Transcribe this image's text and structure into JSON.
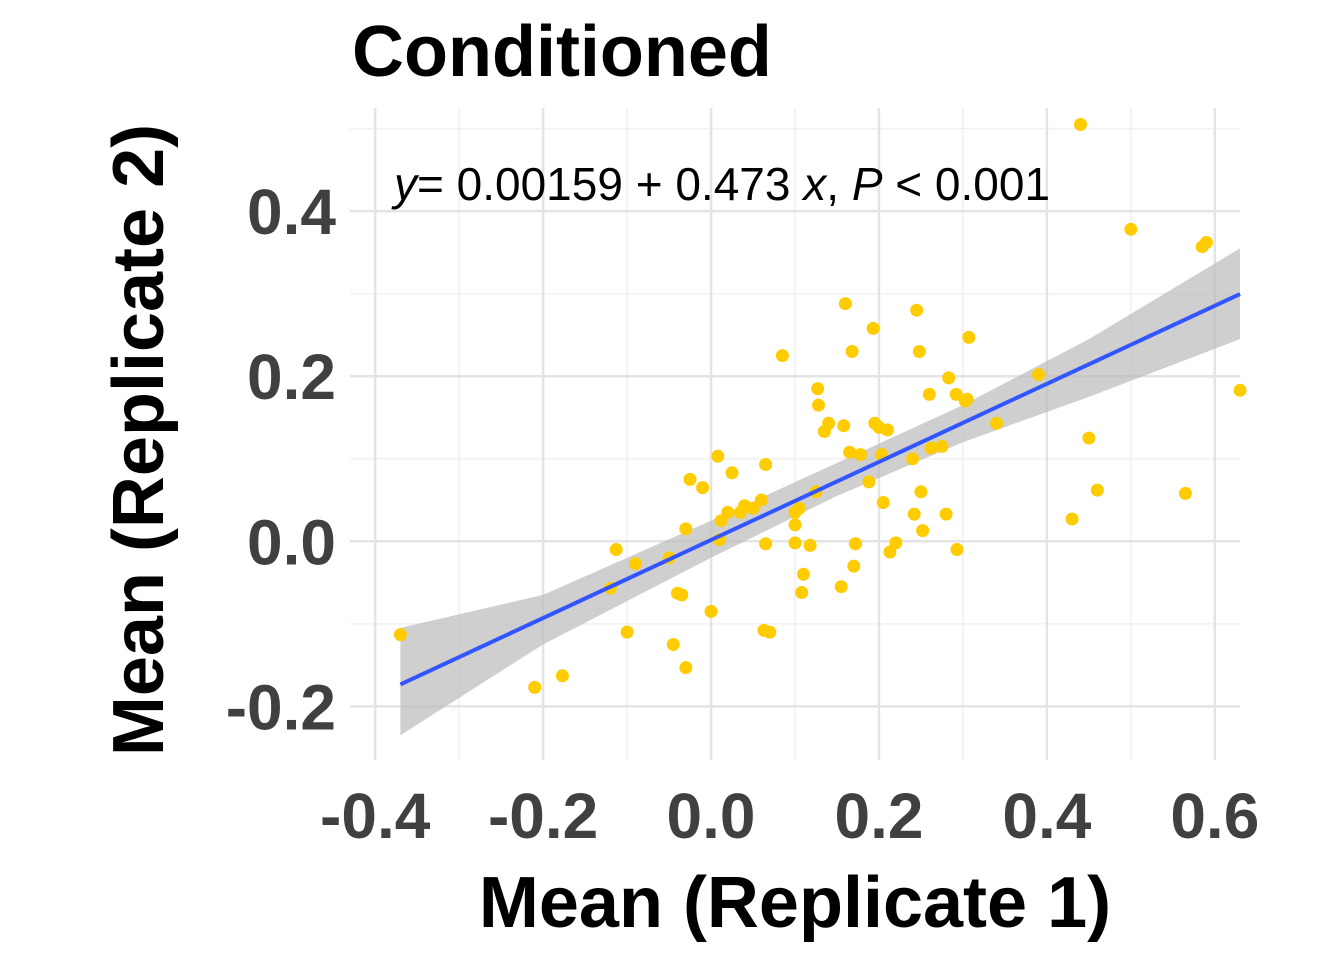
{
  "chart_data": {
    "type": "scatter",
    "title": "Conditioned",
    "xlabel": "Mean (Replicate 1)",
    "ylabel": "Mean (Replicate 2)",
    "xlim": [
      -0.43,
      0.63
    ],
    "ylim": [
      -0.265,
      0.525
    ],
    "x_ticks": [
      -0.4,
      -0.2,
      0.0,
      0.2,
      0.4,
      0.6
    ],
    "x_tick_labels": [
      "-0.4",
      "-0.2",
      "0.0",
      "0.2",
      "0.4",
      "0.6"
    ],
    "y_ticks": [
      -0.2,
      0.0,
      0.2,
      0.4
    ],
    "y_tick_labels": [
      "-0.2",
      "0.0",
      "0.2",
      "0.4"
    ],
    "grid": true,
    "point_color": "#FFCC00",
    "line_color": "#3355FF",
    "band_color": "#BBBBBB",
    "regression": {
      "intercept": 0.00159,
      "slope": 0.473,
      "x_range": [
        -0.37,
        0.63
      ],
      "band": [
        {
          "x": -0.37,
          "lo": -0.235,
          "hi": -0.105
        },
        {
          "x": -0.2,
          "lo": -0.125,
          "hi": -0.065
        },
        {
          "x": 0.0,
          "lo": -0.02,
          "hi": 0.025
        },
        {
          "x": 0.15,
          "lo": 0.055,
          "hi": 0.095
        },
        {
          "x": 0.3,
          "lo": 0.12,
          "hi": 0.165
        },
        {
          "x": 0.45,
          "lo": 0.175,
          "hi": 0.245
        },
        {
          "x": 0.63,
          "lo": 0.245,
          "hi": 0.355
        }
      ]
    },
    "annotation": {
      "y_var": "y",
      "eq_body": "= 0.00159 + 0.473",
      "x_var": "x",
      "sep": ",",
      "p_var": "P",
      "p_rest": "< 0.001"
    },
    "points": [
      {
        "x": -0.37,
        "y": -0.113
      },
      {
        "x": -0.21,
        "y": -0.177
      },
      {
        "x": -0.177,
        "y": -0.163
      },
      {
        "x": -0.12,
        "y": -0.057
      },
      {
        "x": -0.113,
        "y": -0.01
      },
      {
        "x": -0.1,
        "y": -0.11
      },
      {
        "x": -0.09,
        "y": -0.027
      },
      {
        "x": -0.05,
        "y": -0.02
      },
      {
        "x": -0.045,
        "y": -0.125
      },
      {
        "x": -0.04,
        "y": -0.063
      },
      {
        "x": -0.035,
        "y": -0.065
      },
      {
        "x": -0.03,
        "y": -0.153
      },
      {
        "x": -0.03,
        "y": 0.015
      },
      {
        "x": -0.025,
        "y": 0.075
      },
      {
        "x": -0.01,
        "y": 0.065
      },
      {
        "x": 0.0,
        "y": -0.085
      },
      {
        "x": 0.008,
        "y": 0.103
      },
      {
        "x": 0.01,
        "y": 0.002
      },
      {
        "x": 0.012,
        "y": 0.025
      },
      {
        "x": 0.02,
        "y": 0.035
      },
      {
        "x": 0.025,
        "y": 0.083
      },
      {
        "x": 0.035,
        "y": 0.035
      },
      {
        "x": 0.04,
        "y": 0.043
      },
      {
        "x": 0.05,
        "y": 0.04
      },
      {
        "x": 0.06,
        "y": 0.05
      },
      {
        "x": 0.063,
        "y": -0.108
      },
      {
        "x": 0.065,
        "y": -0.003
      },
      {
        "x": 0.065,
        "y": 0.093
      },
      {
        "x": 0.07,
        "y": -0.11
      },
      {
        "x": 0.085,
        "y": 0.225
      },
      {
        "x": 0.1,
        "y": 0.02
      },
      {
        "x": 0.1,
        "y": 0.035
      },
      {
        "x": 0.1,
        "y": -0.002
      },
      {
        "x": 0.105,
        "y": 0.04
      },
      {
        "x": 0.108,
        "y": -0.062
      },
      {
        "x": 0.11,
        "y": -0.04
      },
      {
        "x": 0.118,
        "y": -0.005
      },
      {
        "x": 0.125,
        "y": 0.06
      },
      {
        "x": 0.127,
        "y": 0.185
      },
      {
        "x": 0.128,
        "y": 0.165
      },
      {
        "x": 0.135,
        "y": 0.133
      },
      {
        "x": 0.14,
        "y": 0.143
      },
      {
        "x": 0.155,
        "y": -0.055
      },
      {
        "x": 0.158,
        "y": 0.14
      },
      {
        "x": 0.16,
        "y": 0.288
      },
      {
        "x": 0.165,
        "y": 0.108
      },
      {
        "x": 0.168,
        "y": 0.23
      },
      {
        "x": 0.17,
        "y": -0.03
      },
      {
        "x": 0.172,
        "y": -0.003
      },
      {
        "x": 0.178,
        "y": 0.105
      },
      {
        "x": 0.188,
        "y": 0.072
      },
      {
        "x": 0.193,
        "y": 0.258
      },
      {
        "x": 0.195,
        "y": 0.143
      },
      {
        "x": 0.2,
        "y": 0.138
      },
      {
        "x": 0.203,
        "y": 0.105
      },
      {
        "x": 0.205,
        "y": 0.047
      },
      {
        "x": 0.21,
        "y": 0.135
      },
      {
        "x": 0.213,
        "y": -0.013
      },
      {
        "x": 0.22,
        "y": -0.002
      },
      {
        "x": 0.24,
        "y": 0.1
      },
      {
        "x": 0.242,
        "y": 0.033
      },
      {
        "x": 0.245,
        "y": 0.28
      },
      {
        "x": 0.248,
        "y": 0.23
      },
      {
        "x": 0.25,
        "y": 0.06
      },
      {
        "x": 0.252,
        "y": 0.013
      },
      {
        "x": 0.26,
        "y": 0.178
      },
      {
        "x": 0.262,
        "y": 0.113
      },
      {
        "x": 0.275,
        "y": 0.115
      },
      {
        "x": 0.28,
        "y": 0.033
      },
      {
        "x": 0.283,
        "y": 0.198
      },
      {
        "x": 0.292,
        "y": 0.178
      },
      {
        "x": 0.293,
        "y": -0.01
      },
      {
        "x": 0.303,
        "y": 0.17
      },
      {
        "x": 0.305,
        "y": 0.172
      },
      {
        "x": 0.307,
        "y": 0.247
      },
      {
        "x": 0.34,
        "y": 0.143
      },
      {
        "x": 0.39,
        "y": 0.202
      },
      {
        "x": 0.43,
        "y": 0.027
      },
      {
        "x": 0.44,
        "y": 0.505
      },
      {
        "x": 0.45,
        "y": 0.125
      },
      {
        "x": 0.46,
        "y": 0.062
      },
      {
        "x": 0.5,
        "y": 0.378
      },
      {
        "x": 0.565,
        "y": 0.058
      },
      {
        "x": 0.585,
        "y": 0.357
      },
      {
        "x": 0.59,
        "y": 0.362
      },
      {
        "x": 0.63,
        "y": 0.183
      }
    ]
  }
}
